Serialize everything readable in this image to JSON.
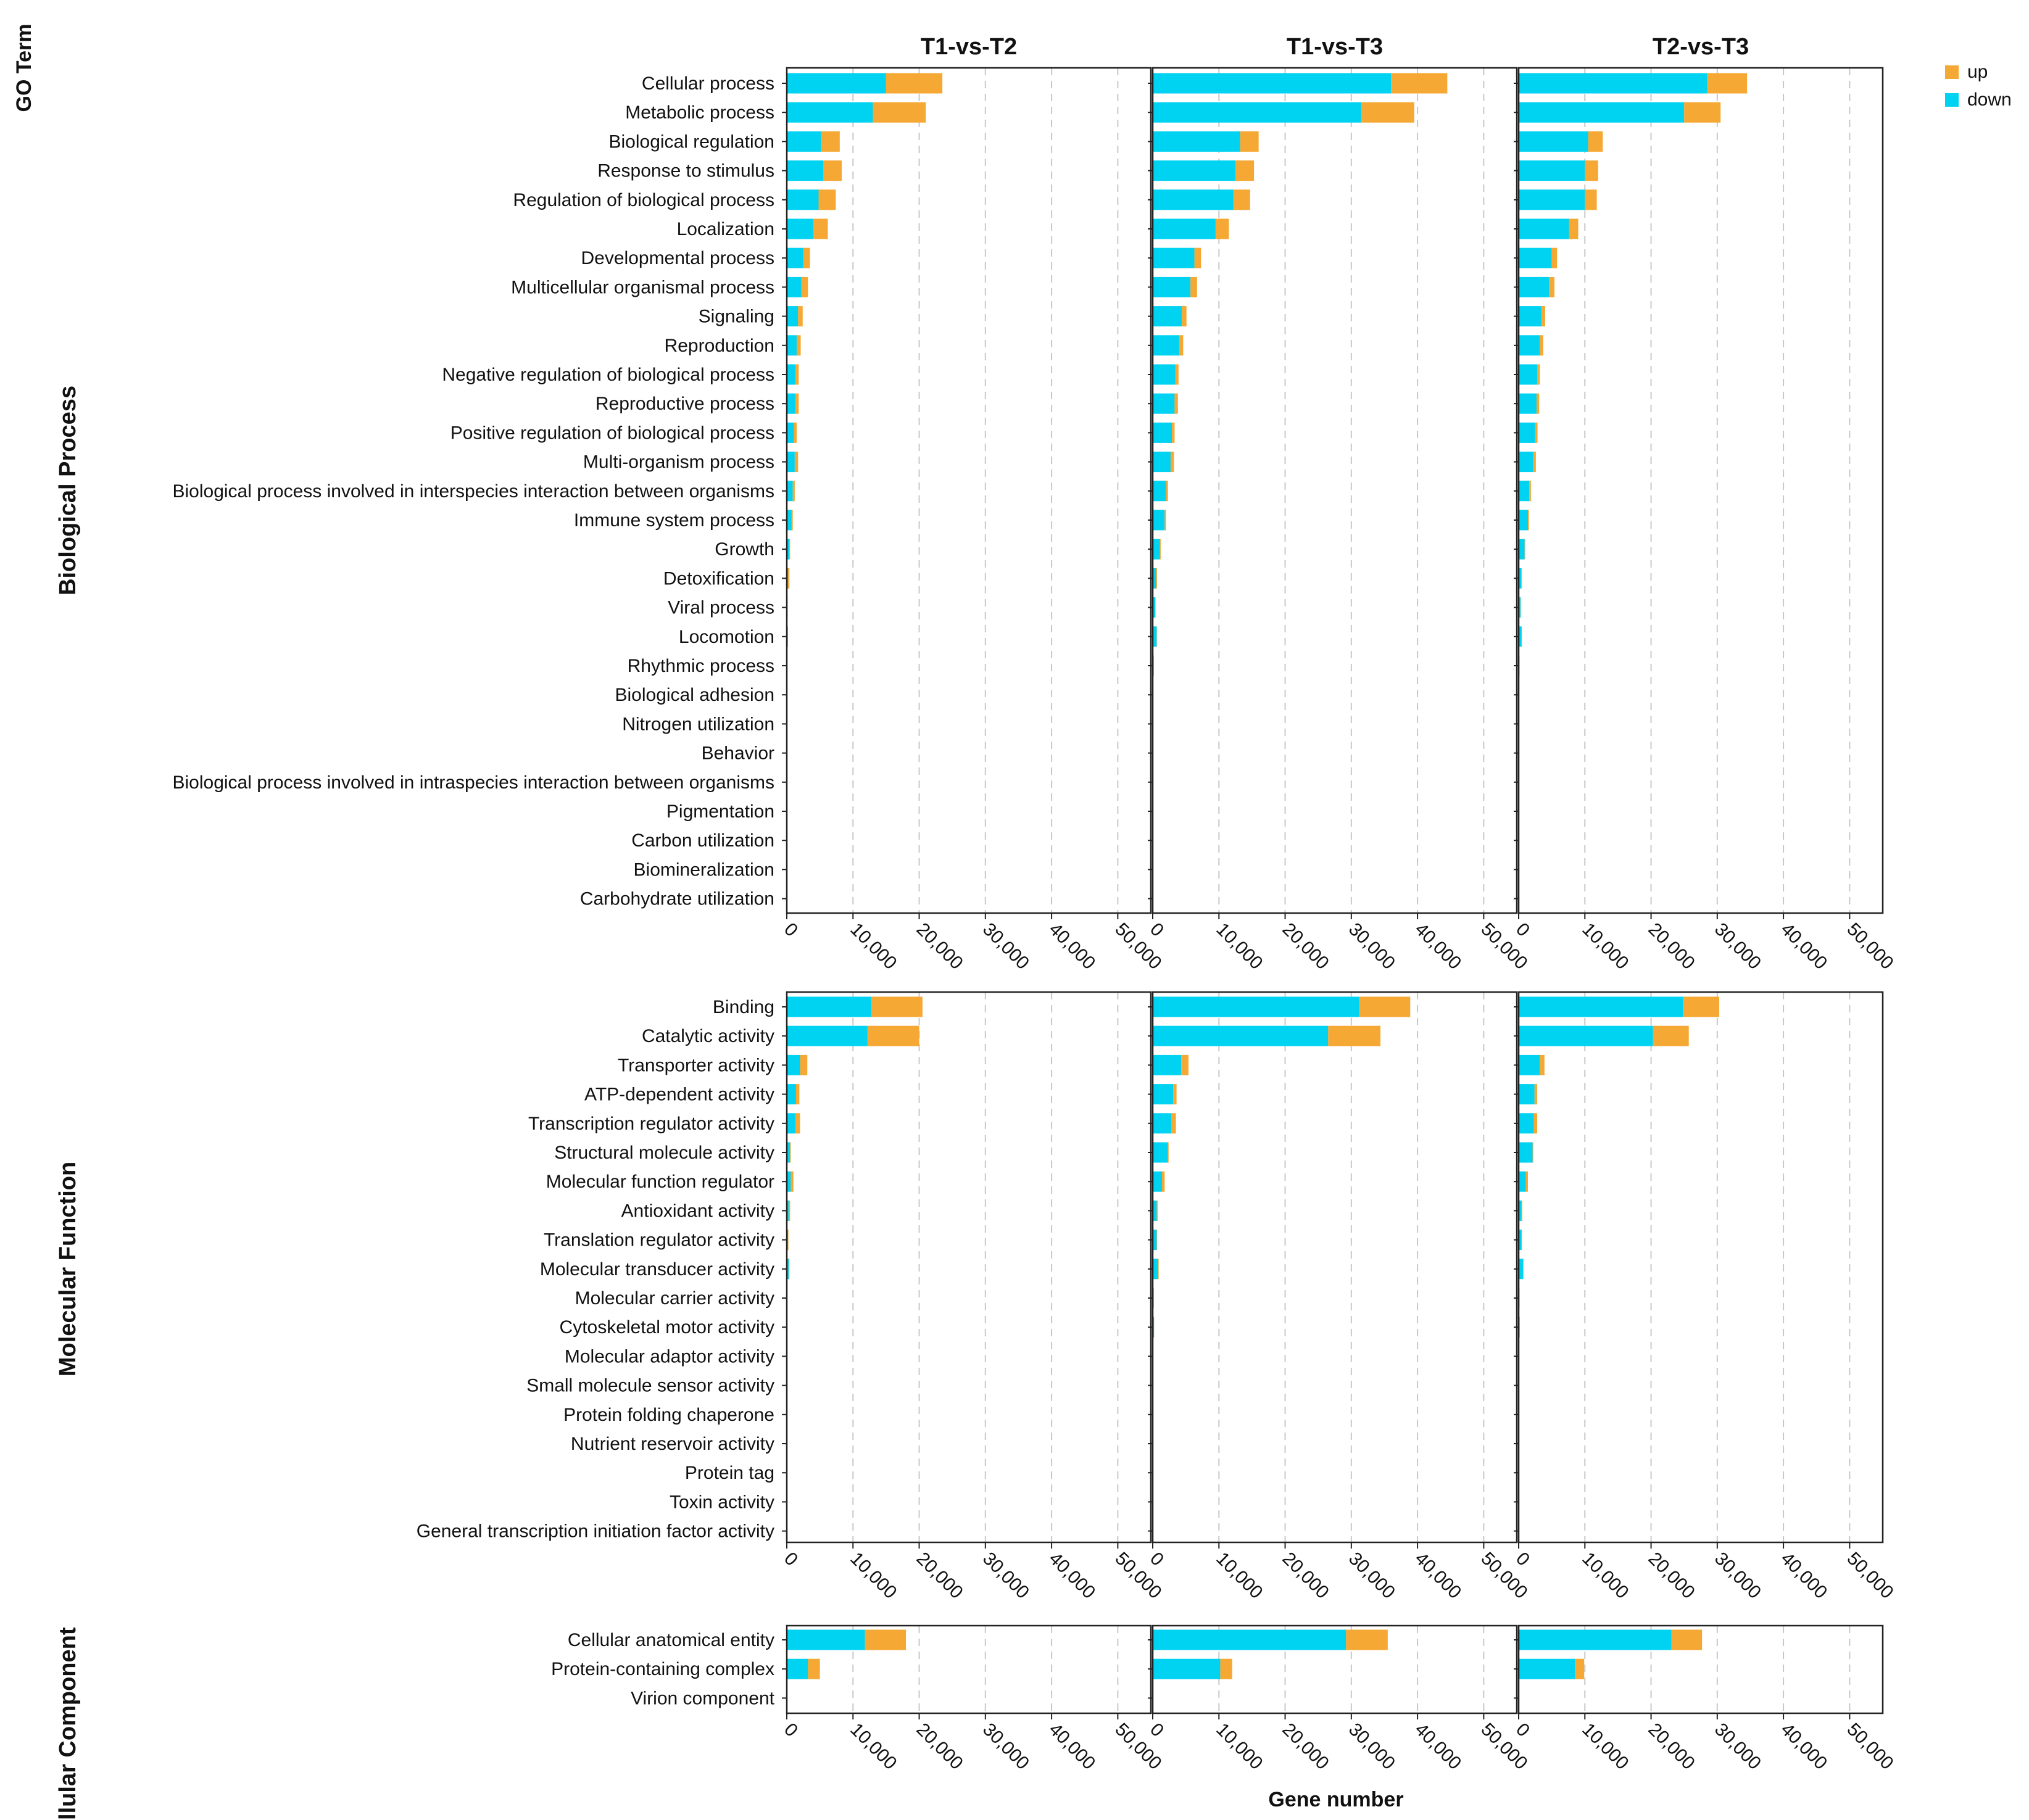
{
  "chart_data": {
    "type": "bar",
    "orientation": "horizontal",
    "stacked": true,
    "y_axis_title": "GO Term",
    "x_axis_title": "Gene number",
    "xlim": [
      0,
      55000
    ],
    "x_ticks": [
      0,
      10000,
      20000,
      30000,
      40000,
      50000
    ],
    "x_tick_labels": [
      "0",
      "10,000",
      "20,000",
      "30,000",
      "40,000",
      "50,000"
    ],
    "grid": "vertical dashed",
    "legend": {
      "placement": "top-right",
      "items": [
        {
          "name": "up",
          "color": "#F5A833"
        },
        {
          "name": "down",
          "color": "#00D2F2"
        }
      ]
    },
    "comparisons": [
      "T1-vs-T2",
      "T1-vs-T3",
      "T2-vs-T3"
    ],
    "categories": [
      {
        "name": "Biological Process",
        "terms": [
          {
            "label": "Cellular process",
            "down": [
              15000,
              36000,
              28500
            ],
            "up": [
              8500,
              8500,
              6000
            ]
          },
          {
            "label": "Metabolic process",
            "down": [
              13000,
              31500,
              25000
            ],
            "up": [
              8000,
              8000,
              5500
            ]
          },
          {
            "label": "Biological regulation",
            "down": [
              5200,
              13200,
              10500
            ],
            "up": [
              2800,
              2800,
              2200
            ]
          },
          {
            "label": "Response to stimulus",
            "down": [
              5500,
              12500,
              10000
            ],
            "up": [
              2800,
              2800,
              2000
            ]
          },
          {
            "label": "Regulation of biological process",
            "down": [
              4800,
              12200,
              10000
            ],
            "up": [
              2600,
              2500,
              1800
            ]
          },
          {
            "label": "Localization",
            "down": [
              4000,
              9500,
              7600
            ],
            "up": [
              2200,
              2000,
              1400
            ]
          },
          {
            "label": "Developmental process",
            "down": [
              2500,
              6300,
              5000
            ],
            "up": [
              1000,
              1000,
              800
            ]
          },
          {
            "label": "Multicellular organismal process",
            "down": [
              2200,
              5700,
              4600
            ],
            "up": [
              1000,
              1000,
              800
            ]
          },
          {
            "label": "Signaling",
            "down": [
              1700,
              4400,
              3400
            ],
            "up": [
              700,
              700,
              600
            ]
          },
          {
            "label": "Reproduction",
            "down": [
              1500,
              4000,
              3200
            ],
            "up": [
              600,
              600,
              500
            ]
          },
          {
            "label": "Negative regulation of biological process",
            "down": [
              1300,
              3400,
              2800
            ],
            "up": [
              500,
              500,
              400
            ]
          },
          {
            "label": "Reproductive process",
            "down": [
              1300,
              3300,
              2700
            ],
            "up": [
              500,
              500,
              400
            ]
          },
          {
            "label": "Positive regulation of biological process",
            "down": [
              1100,
              2900,
              2500
            ],
            "up": [
              400,
              400,
              350
            ]
          },
          {
            "label": "Multi-organism process",
            "down": [
              1200,
              2700,
              2200
            ],
            "up": [
              500,
              500,
              400
            ]
          },
          {
            "label": "Biological process involved in interspecies interaction between organisms",
            "down": [
              900,
              2000,
              1600
            ],
            "up": [
              300,
              300,
              250
            ]
          },
          {
            "label": "Immune system process",
            "down": [
              700,
              1800,
              1400
            ],
            "up": [
              200,
              200,
              150
            ]
          },
          {
            "label": "Growth",
            "down": [
              400,
              1100,
              900
            ],
            "up": [
              100,
              100,
              80
            ]
          },
          {
            "label": "Detoxification",
            "down": [
              200,
              500,
              400
            ],
            "up": [
              200,
              150,
              100
            ]
          },
          {
            "label": "Viral process",
            "down": [
              100,
              400,
              300
            ],
            "up": [
              30,
              30,
              30
            ]
          },
          {
            "label": "Locomotion",
            "down": [
              150,
              600,
              450
            ],
            "up": [
              30,
              30,
              30
            ]
          },
          {
            "label": "Rhythmic process",
            "down": [
              30,
              150,
              120
            ],
            "up": [
              10,
              10,
              10
            ]
          },
          {
            "label": "Biological adhesion",
            "down": [
              20,
              60,
              50
            ],
            "up": [
              5,
              5,
              5
            ]
          },
          {
            "label": "Nitrogen utilization",
            "down": [
              10,
              30,
              25
            ],
            "up": [
              5,
              5,
              5
            ]
          },
          {
            "label": "Behavior",
            "down": [
              10,
              30,
              25
            ],
            "up": [
              5,
              5,
              5
            ]
          },
          {
            "label": "Biological process involved in intraspecies interaction between organisms",
            "down": [
              10,
              20,
              20
            ],
            "up": [
              2,
              2,
              2
            ]
          },
          {
            "label": "Pigmentation",
            "down": [
              5,
              15,
              12
            ],
            "up": [
              2,
              2,
              2
            ]
          },
          {
            "label": "Carbon utilization",
            "down": [
              5,
              10,
              8
            ],
            "up": [
              2,
              2,
              2
            ]
          },
          {
            "label": "Biomineralization",
            "down": [
              3,
              8,
              6
            ],
            "up": [
              1,
              1,
              1
            ]
          },
          {
            "label": "Carbohydrate utilization",
            "down": [
              3,
              8,
              6
            ],
            "up": [
              1,
              1,
              1
            ]
          }
        ]
      },
      {
        "name": "Molecular Function",
        "terms": [
          {
            "label": "Binding",
            "down": [
              12800,
              31200,
              24800
            ],
            "up": [
              7700,
              7700,
              5500
            ]
          },
          {
            "label": "Catalytic activity",
            "down": [
              12200,
              26500,
              20300
            ],
            "up": [
              7800,
              7900,
              5400
            ]
          },
          {
            "label": "Transporter activity",
            "down": [
              2000,
              4300,
              3200
            ],
            "up": [
              1100,
              1100,
              700
            ]
          },
          {
            "label": "ATP-dependent activity",
            "down": [
              1400,
              3100,
              2400
            ],
            "up": [
              500,
              500,
              400
            ]
          },
          {
            "label": "Transcription regulator activity",
            "down": [
              1300,
              2800,
              2300
            ],
            "up": [
              700,
              700,
              500
            ]
          },
          {
            "label": "Structural molecule activity",
            "down": [
              500,
              2300,
              2100
            ],
            "up": [
              100,
              100,
              100
            ]
          },
          {
            "label": "Molecular function regulator",
            "down": [
              600,
              1400,
              1100
            ],
            "up": [
              400,
              400,
              300
            ]
          },
          {
            "label": "Antioxidant activity",
            "down": [
              300,
              600,
              450
            ],
            "up": [
              200,
              150,
              100
            ]
          },
          {
            "label": "Translation regulator activity",
            "down": [
              200,
              600,
              450
            ],
            "up": [
              50,
              50,
              50
            ]
          },
          {
            "label": "Molecular transducer activity",
            "down": [
              300,
              800,
              650
            ],
            "up": [
              100,
              100,
              80
            ]
          },
          {
            "label": "Molecular carrier activity",
            "down": [
              50,
              150,
              120
            ],
            "up": [
              10,
              10,
              10
            ]
          },
          {
            "label": "Cytoskeletal motor activity",
            "down": [
              30,
              200,
              150
            ],
            "up": [
              10,
              10,
              10
            ]
          },
          {
            "label": "Molecular adaptor activity",
            "down": [
              20,
              60,
              50
            ],
            "up": [
              5,
              5,
              5
            ]
          },
          {
            "label": "Small molecule sensor activity",
            "down": [
              10,
              30,
              25
            ],
            "up": [
              5,
              5,
              5
            ]
          },
          {
            "label": "Protein folding chaperone",
            "down": [
              10,
              30,
              25
            ],
            "up": [
              5,
              5,
              5
            ]
          },
          {
            "label": "Nutrient reservoir activity",
            "down": [
              10,
              20,
              15
            ],
            "up": [
              5,
              5,
              5
            ]
          },
          {
            "label": "Protein tag",
            "down": [
              5,
              10,
              8
            ],
            "up": [
              1,
              1,
              1
            ]
          },
          {
            "label": "Toxin activity",
            "down": [
              5,
              10,
              8
            ],
            "up": [
              1,
              1,
              1
            ]
          },
          {
            "label": "General transcription initiation factor activity",
            "down": [
              3,
              8,
              6
            ],
            "up": [
              1,
              1,
              1
            ]
          }
        ]
      },
      {
        "name": "Cellular Component",
        "terms": [
          {
            "label": "Cellular anatomical entity",
            "down": [
              11800,
              29200,
              23100
            ],
            "up": [
              6200,
              6300,
              4600
            ]
          },
          {
            "label": "Protein-containing complex",
            "down": [
              3200,
              10200,
              8500
            ],
            "up": [
              1800,
              1800,
              1400
            ]
          },
          {
            "label": "Virion component",
            "down": [
              5,
              15,
              10
            ],
            "up": [
              1,
              1,
              1
            ]
          }
        ]
      }
    ]
  }
}
